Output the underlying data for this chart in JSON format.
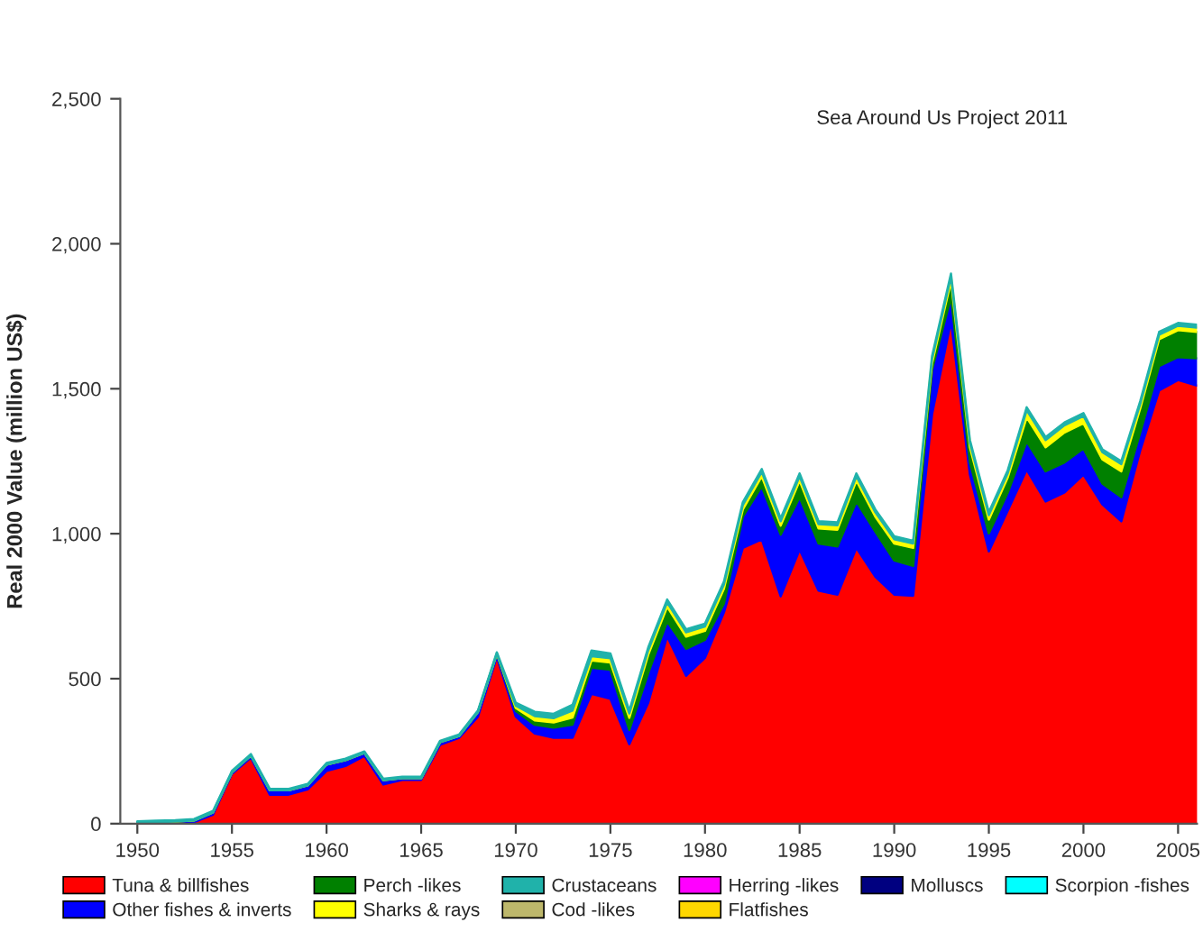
{
  "chart_data": {
    "type": "area",
    "stacked": true,
    "ylabel": "Real 2000 Value (million US$)",
    "annotations": [
      "Sea Around Us Project 2011"
    ],
    "x": [
      1950,
      1951,
      1952,
      1953,
      1954,
      1955,
      1956,
      1957,
      1958,
      1959,
      1960,
      1961,
      1962,
      1963,
      1964,
      1965,
      1966,
      1967,
      1968,
      1969,
      1970,
      1971,
      1972,
      1973,
      1974,
      1975,
      1976,
      1977,
      1978,
      1979,
      1980,
      1981,
      1982,
      1983,
      1984,
      1985,
      1986,
      1987,
      1988,
      1989,
      1990,
      1991,
      1992,
      1993,
      1994,
      1995,
      1996,
      1997,
      1998,
      1999,
      2000,
      2001,
      2002,
      2003,
      2004,
      2005,
      2006
    ],
    "xlim": [
      1949.1,
      2006
    ],
    "xticks": [
      1950,
      1955,
      1960,
      1965,
      1970,
      1975,
      1980,
      1985,
      1990,
      1995,
      2000,
      2005
    ],
    "ylim": [
      0,
      2500
    ],
    "yticks": [
      0,
      500,
      {
        "value": 1000,
        "label": "1,000"
      },
      {
        "value": 1500,
        "label": "1,500"
      },
      {
        "value": 2000,
        "label": "2,000"
      },
      {
        "value": 2500,
        "label": "2,500"
      }
    ],
    "grid": false,
    "legend": "bottom",
    "series": [
      {
        "name": "Tuna & billfishes",
        "color": "#ff0000",
        "values": [
          0,
          1,
          2,
          5,
          31,
          172,
          228,
          100,
          100,
          118,
          182,
          199,
          234,
          135,
          151,
          151,
          272,
          296,
          369,
          576,
          369,
          311,
          296,
          296,
          448,
          431,
          274,
          417,
          646,
          510,
          572,
          728,
          951,
          981,
          784,
          945,
          804,
          790,
          951,
          852,
          790,
          786,
          1412,
          1733,
          1204,
          939,
          1080,
          1221,
          1111,
          1142,
          1204,
          1101,
          1043,
          1287,
          1494,
          1530,
          1511
        ]
      },
      {
        "name": "Other fishes & inverts",
        "color": "#0000ff",
        "values": [
          3,
          4,
          5,
          6,
          8,
          5,
          7,
          15,
          15,
          14,
          22,
          20,
          10,
          15,
          6,
          6,
          9,
          6,
          16,
          10,
          20,
          30,
          35,
          45,
          90,
          100,
          49,
          103,
          51,
          93,
          62,
          31,
          108,
          182,
          213,
          181,
          162,
          166,
          160,
          155,
          118,
          103,
          155,
          83,
          42,
          62,
          62,
          97,
          104,
          104,
          90,
          72,
          83,
          62,
          84,
          79,
          94
        ]
      },
      {
        "name": "Perch -likes",
        "color": "#008000",
        "values": [
          0,
          0,
          0,
          0,
          0,
          0,
          0,
          0,
          0,
          0,
          0,
          0,
          0,
          0,
          0,
          0,
          0,
          0,
          0,
          0,
          10,
          15,
          18,
          25,
          25,
          25,
          42,
          63,
          51,
          42,
          31,
          51,
          25,
          35,
          31,
          57,
          52,
          58,
          72,
          52,
          58,
          62,
          21,
          56,
          52,
          48,
          52,
          83,
          83,
          103,
          87,
          83,
          89,
          83,
          93,
          93,
          91
        ]
      },
      {
        "name": "Sharks & rays",
        "color": "#ffff00",
        "values": [
          0,
          0,
          0,
          0,
          0,
          0,
          0,
          0,
          0,
          0,
          0,
          0,
          0,
          0,
          0,
          0,
          0,
          0,
          0,
          0,
          8,
          15,
          15,
          24,
          15,
          15,
          15,
          15,
          15,
          15,
          15,
          15,
          15,
          15,
          15,
          15,
          15,
          15,
          15,
          15,
          15,
          15,
          15,
          15,
          15,
          15,
          15,
          25,
          25,
          25,
          25,
          25,
          25,
          15,
          15,
          15,
          15
        ]
      },
      {
        "name": "Crustaceans",
        "color": "#20b2aa",
        "values": [
          5,
          5,
          5,
          5,
          5,
          5,
          5,
          5,
          5,
          5,
          5,
          5,
          5,
          5,
          5,
          5,
          5,
          5,
          5,
          5,
          10,
          15,
          15,
          20,
          19,
          16,
          10,
          10,
          10,
          10,
          10,
          10,
          10,
          10,
          10,
          10,
          10,
          10,
          10,
          10,
          10,
          10,
          10,
          10,
          10,
          10,
          10,
          10,
          10,
          10,
          10,
          10,
          10,
          10,
          10,
          10,
          10
        ]
      },
      {
        "name": "Cod -likes",
        "color": "#bdb76b",
        "values": [
          null,
          null,
          null,
          null,
          null,
          null,
          null,
          null,
          null,
          null,
          null,
          null,
          null,
          null,
          null,
          null,
          null,
          null,
          null,
          null,
          null,
          null,
          null,
          null,
          null,
          null,
          null,
          null,
          null,
          null,
          null,
          null,
          null,
          null,
          null,
          null,
          null,
          null,
          null,
          null,
          null,
          null,
          null,
          null,
          null,
          null,
          null,
          null,
          null,
          null,
          null,
          null,
          null,
          null,
          null,
          null,
          null
        ]
      },
      {
        "name": "Herring -likes",
        "color": "#ff00ff",
        "values": [
          null,
          null,
          null,
          null,
          null,
          null,
          null,
          null,
          null,
          null,
          null,
          null,
          null,
          null,
          null,
          null,
          null,
          null,
          null,
          null,
          null,
          null,
          null,
          null,
          null,
          null,
          null,
          null,
          null,
          null,
          null,
          null,
          null,
          null,
          null,
          null,
          null,
          null,
          null,
          null,
          null,
          null,
          null,
          null,
          null,
          null,
          null,
          null,
          null,
          null,
          null,
          null,
          null,
          null,
          null,
          null,
          null
        ]
      },
      {
        "name": "Flatfishes",
        "color": "#ffd700",
        "values": [
          null,
          null,
          null,
          null,
          null,
          null,
          null,
          null,
          null,
          null,
          null,
          null,
          null,
          null,
          null,
          null,
          null,
          null,
          null,
          null,
          null,
          null,
          null,
          null,
          null,
          null,
          null,
          null,
          null,
          null,
          null,
          null,
          null,
          null,
          null,
          null,
          null,
          null,
          null,
          null,
          null,
          null,
          null,
          null,
          null,
          null,
          null,
          null,
          null,
          null,
          null,
          null,
          null,
          null,
          null,
          null,
          null
        ]
      },
      {
        "name": "Molluscs",
        "color": "#000080",
        "values": [
          null,
          null,
          null,
          null,
          null,
          null,
          null,
          null,
          null,
          null,
          null,
          null,
          null,
          null,
          null,
          null,
          null,
          null,
          null,
          null,
          null,
          null,
          null,
          null,
          null,
          null,
          null,
          null,
          null,
          null,
          null,
          null,
          null,
          null,
          null,
          null,
          null,
          null,
          null,
          null,
          null,
          null,
          null,
          null,
          null,
          null,
          null,
          null,
          null,
          null,
          null,
          null,
          null,
          null,
          null,
          null,
          null
        ]
      },
      {
        "name": "Scorpion -fishes",
        "color": "#00ffff",
        "values": [
          null,
          null,
          null,
          null,
          null,
          null,
          null,
          null,
          null,
          null,
          null,
          null,
          null,
          null,
          null,
          null,
          null,
          null,
          null,
          null,
          null,
          null,
          null,
          null,
          null,
          null,
          null,
          null,
          null,
          null,
          null,
          null,
          null,
          null,
          null,
          null,
          null,
          null,
          null,
          null,
          null,
          null,
          null,
          null,
          null,
          null,
          null,
          null,
          null,
          null,
          null,
          null,
          null,
          null,
          null,
          null,
          null
        ]
      }
    ]
  }
}
